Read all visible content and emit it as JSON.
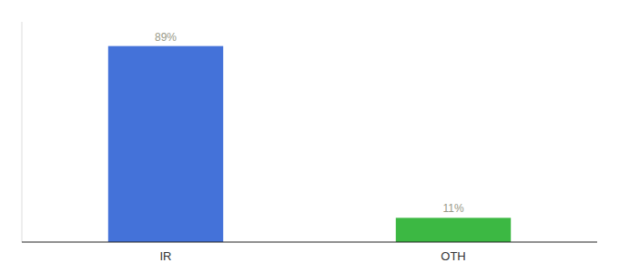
{
  "chart_data": {
    "type": "bar",
    "categories": [
      "IR",
      "OTH"
    ],
    "values": [
      89,
      11
    ],
    "colors": [
      "#4472d9",
      "#3cb843"
    ],
    "value_labels": [
      "89%",
      "11%"
    ],
    "data_labels": true,
    "ylim": [
      0,
      100
    ],
    "tick_labels": "x"
  }
}
